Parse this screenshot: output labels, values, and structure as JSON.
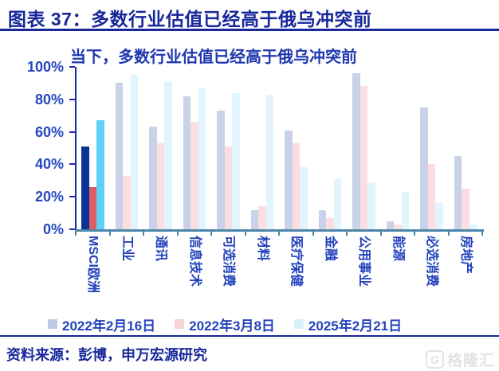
{
  "header": {
    "title": "图表 37：多数行业估值已经高于俄乌冲突前"
  },
  "chart_data": {
    "type": "bar",
    "title": "当下，多数行业估值已经高于俄乌冲突前",
    "xlabel": "",
    "ylabel": "",
    "ylim": [
      0,
      100
    ],
    "yticks": [
      "0%",
      "20%",
      "40%",
      "60%",
      "80%",
      "100%"
    ],
    "grid": false,
    "legend_position": "bottom",
    "categories": [
      "MSCI欧洲",
      "工业",
      "通讯",
      "信息技术",
      "可选消费",
      "材料",
      "医疗保健",
      "金融",
      "公用事业",
      "能源",
      "必选消费",
      "房地产"
    ],
    "highlight_category_index": 0,
    "series": [
      {
        "name": "2022年2月16日",
        "color": "#C9D2E8",
        "legend_color": "#BFC9E3",
        "highlight_color": "#0B3295",
        "values": [
          51,
          90,
          63,
          82,
          73,
          12,
          61,
          12,
          96,
          5,
          75,
          45
        ]
      },
      {
        "name": "2022年3月8日",
        "color": "#FADEE1",
        "legend_color": "#F5D3D7",
        "highlight_color": "#DE5E63",
        "values": [
          26,
          33,
          53,
          66,
          51,
          14,
          53,
          7,
          88,
          3,
          40,
          25
        ]
      },
      {
        "name": "2025年2月21日",
        "color": "#E2F4FD",
        "legend_color": "#D9EFFB",
        "highlight_color": "#5FD1F8",
        "values": [
          67,
          95,
          91,
          87,
          84,
          83,
          38,
          31,
          29,
          23,
          16,
          3
        ]
      }
    ]
  },
  "colors": {
    "header_navy": "#18289B",
    "text_blue": "#2343BC",
    "axis_line": "#4C86A8",
    "y_axis_line": "#1A2C9C"
  },
  "footer": {
    "source": "资料来源：彭博，申万宏源研究",
    "watermark": "格隆汇",
    "watermark_icon_letter": "G"
  }
}
